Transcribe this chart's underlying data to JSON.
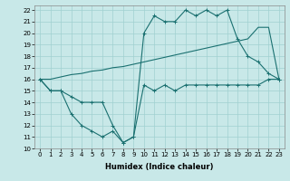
{
  "xlabel": "Humidex (Indice chaleur)",
  "background_color": "#c8e8e8",
  "line_color": "#1a7070",
  "xlim": [
    -0.5,
    23.5
  ],
  "ylim": [
    10,
    22.4
  ],
  "xticks": [
    0,
    1,
    2,
    3,
    4,
    5,
    6,
    7,
    8,
    9,
    10,
    11,
    12,
    13,
    14,
    15,
    16,
    17,
    18,
    19,
    20,
    21,
    22,
    23
  ],
  "yticks": [
    10,
    11,
    12,
    13,
    14,
    15,
    16,
    17,
    18,
    19,
    20,
    21,
    22
  ],
  "line_min_x": [
    0,
    1,
    2,
    3,
    4,
    5,
    6,
    7,
    8,
    9,
    10,
    11,
    12,
    13,
    14,
    15,
    16,
    17,
    18,
    19,
    20,
    21,
    22,
    23
  ],
  "line_min_y": [
    16,
    15,
    15,
    14.5,
    14,
    14,
    14,
    12,
    10.5,
    11,
    15.5,
    15,
    15.5,
    15,
    15.5,
    15.5,
    15.5,
    15.5,
    15.5,
    15.5,
    15.5,
    15.5,
    16,
    16
  ],
  "line_trend_x": [
    0,
    1,
    2,
    3,
    4,
    5,
    6,
    7,
    8,
    9,
    10,
    11,
    12,
    13,
    14,
    15,
    16,
    17,
    18,
    19,
    20,
    21,
    22,
    23
  ],
  "line_trend_y": [
    16,
    16,
    16.2,
    16.4,
    16.5,
    16.7,
    16.8,
    17.0,
    17.1,
    17.3,
    17.5,
    17.7,
    17.9,
    18.1,
    18.3,
    18.5,
    18.7,
    18.9,
    19.1,
    19.3,
    19.5,
    20.5,
    20.5,
    16
  ],
  "line_max_x": [
    0,
    1,
    2,
    3,
    4,
    5,
    6,
    7,
    8,
    9,
    10,
    11,
    12,
    13,
    14,
    15,
    16,
    17,
    18,
    19,
    20,
    21,
    22,
    23
  ],
  "line_max_y": [
    16,
    15,
    15,
    13,
    12,
    11.5,
    11,
    11.5,
    10.5,
    11,
    20,
    21.5,
    21,
    21,
    22,
    21.5,
    22,
    21.5,
    22,
    19.5,
    18,
    17.5,
    16.5,
    16
  ],
  "grid_color": "#a0d0d0",
  "tick_fontsize": 5,
  "xlabel_fontsize": 6
}
